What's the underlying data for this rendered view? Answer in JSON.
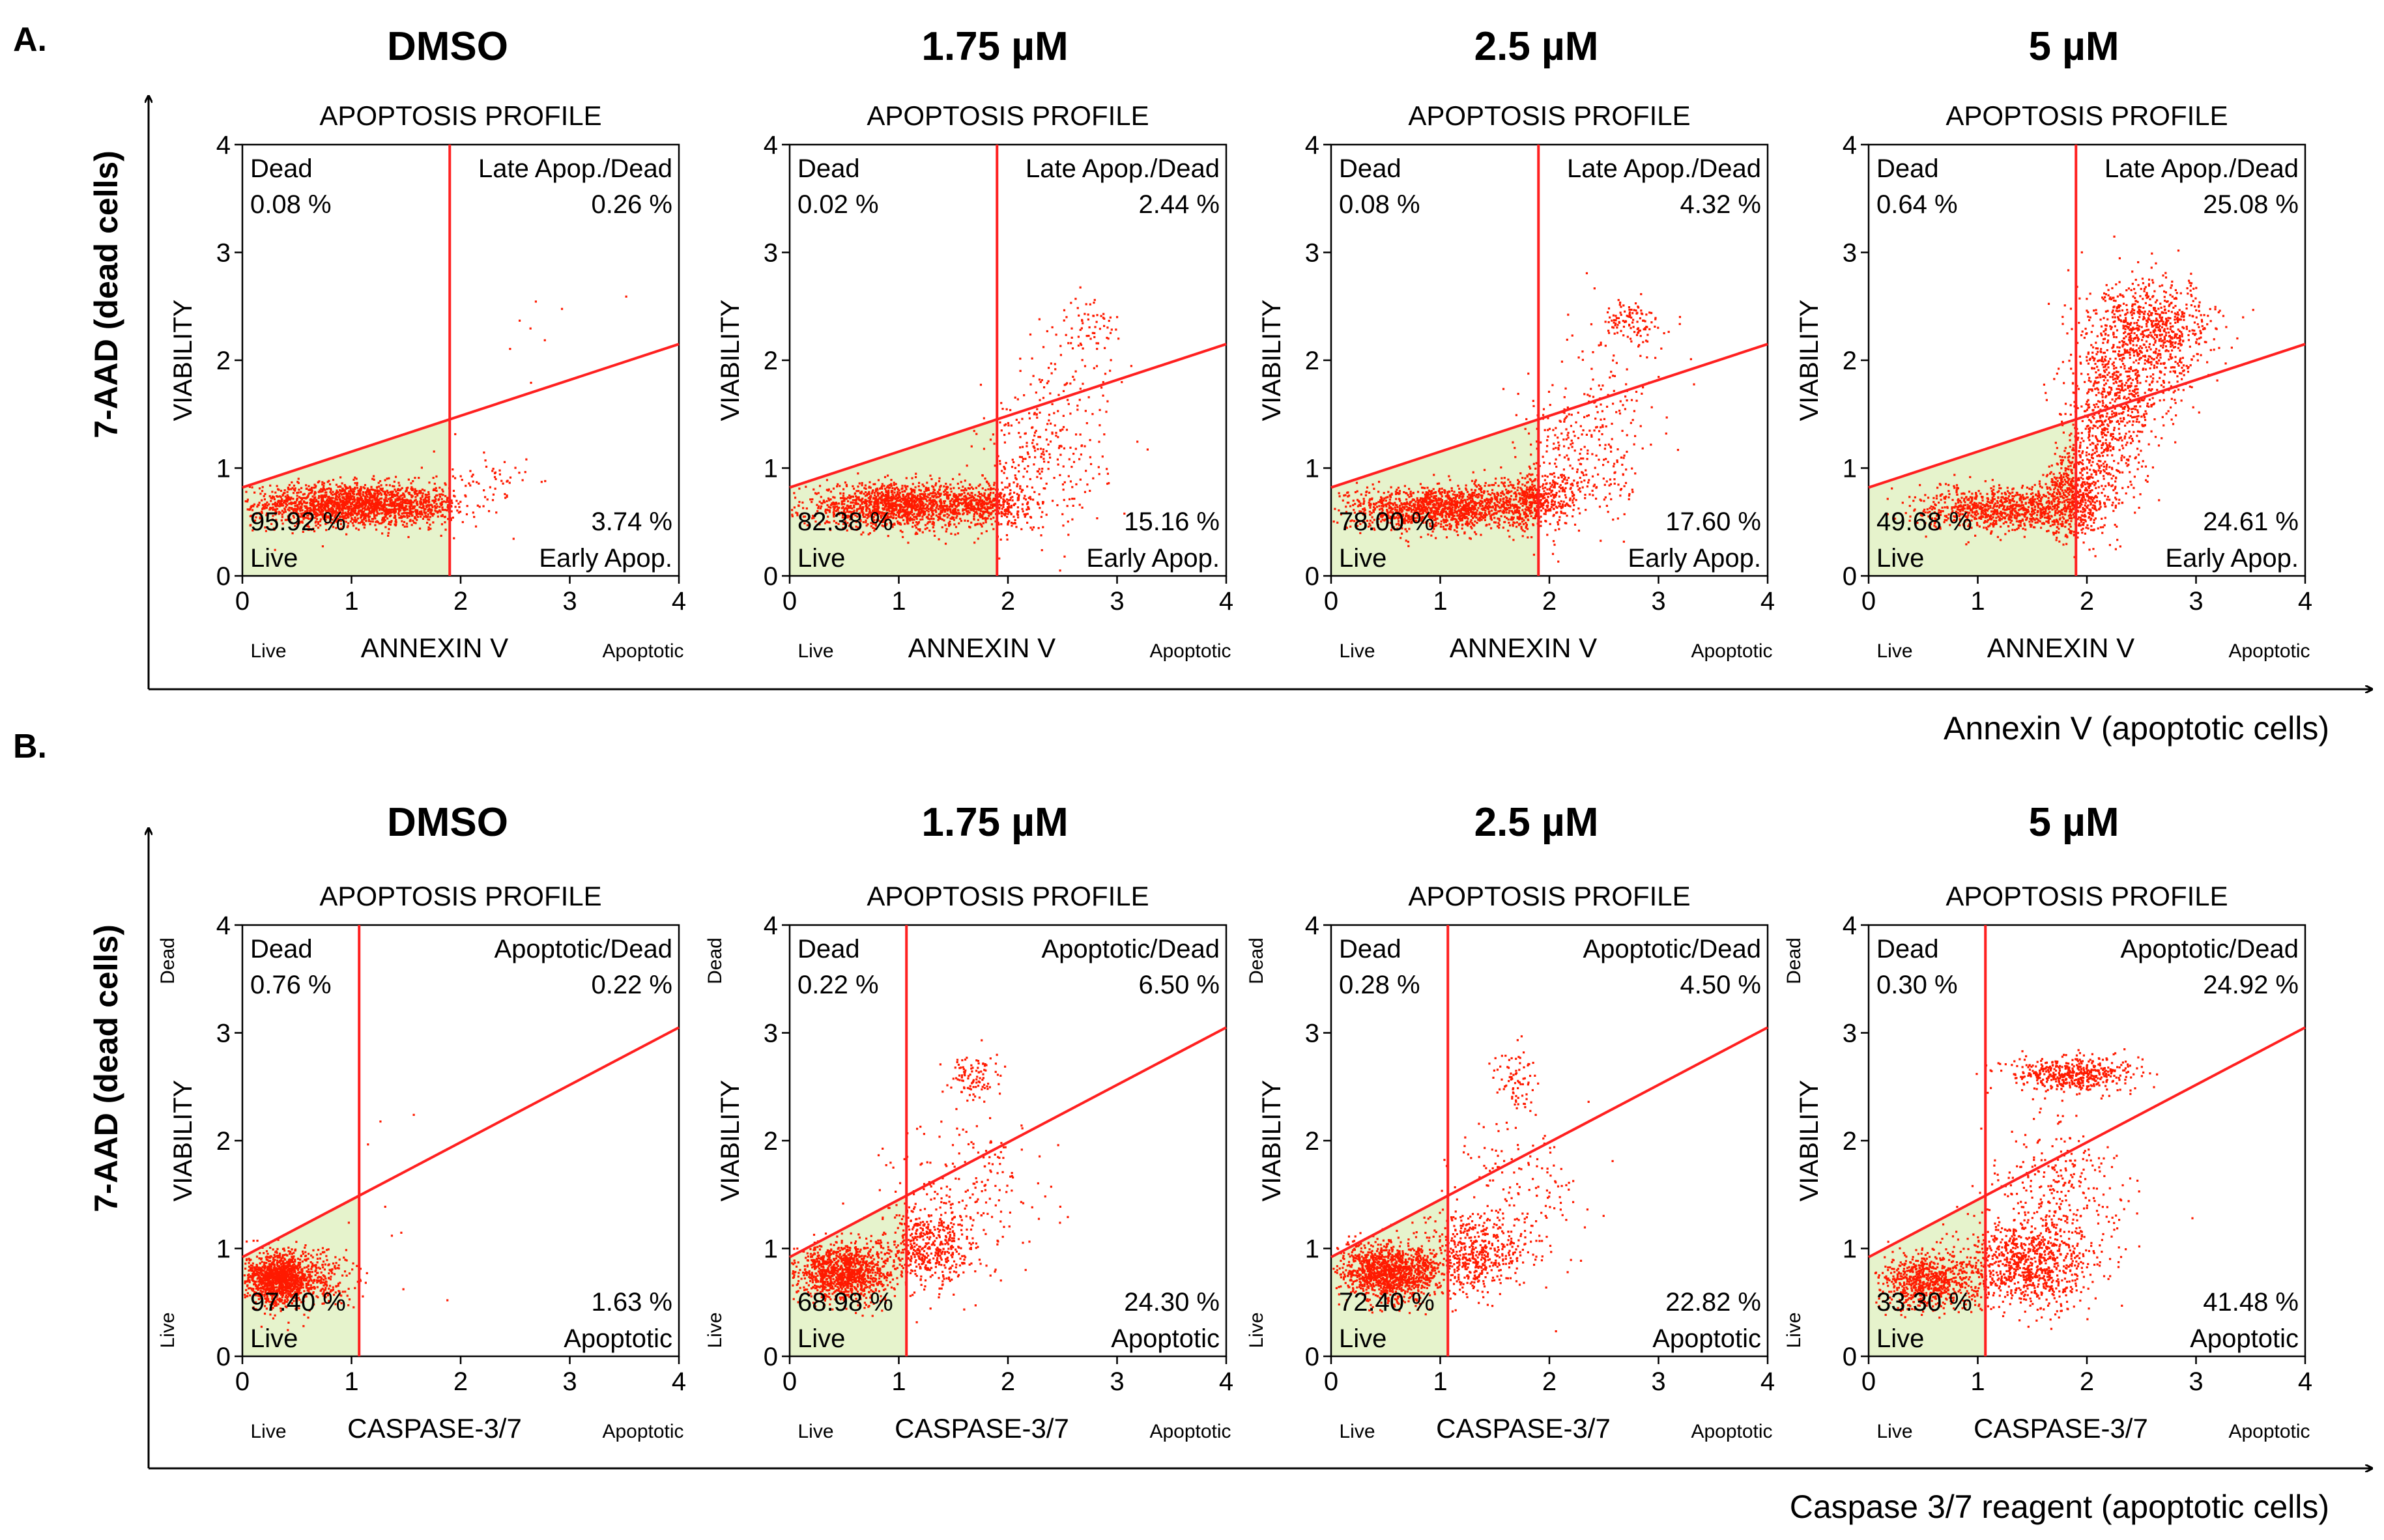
{
  "colors": {
    "background": "#ffffff",
    "axis": "#000000",
    "gate_line": "#ff2020",
    "dot": "#ff1a00",
    "live_region_fill": "#e6f3cc"
  },
  "icons": [
    "arrow-right-icon",
    "arrow-up-icon"
  ],
  "chart_data": [
    {
      "type": "scatter",
      "panel": "A.",
      "outer_ylabel": "7-AAD (dead cells)",
      "outer_xlabel": "Annexin V (apoptotic cells)",
      "x_marker_label": "ANNEXIN V",
      "x_left_label": "Live",
      "x_right_label": "Apoptotic",
      "plots": [
        {
          "condition": "DMSO",
          "title": "APOPTOSIS PROFILE",
          "xlabel": "ANNEXIN V",
          "ylabel": "VIABILITY",
          "xlim": [
            0,
            4
          ],
          "ylim": [
            0,
            4
          ],
          "x_ticks": [
            "0",
            "1",
            "2",
            "3",
            "4"
          ],
          "y_ticks": [
            "0",
            "1",
            "2",
            "3",
            "4"
          ],
          "vertical_gate_x": 1.9,
          "diagonal_gate": {
            "y_at_x0": 0.82,
            "y_at_x4": 2.15
          },
          "quadrants": {
            "dead": {
              "label": "Dead",
              "percent": "0.08 %"
            },
            "late": {
              "label": "Late Apop./Dead",
              "percent": "0.26 %"
            },
            "live": {
              "label": "Live",
              "percent": "95.92 %"
            },
            "early": {
              "label": "Early Apop.",
              "percent": "3.74 %"
            }
          },
          "clusters": [
            {
              "cx": 0.95,
              "cy": 0.66,
              "sx": 0.42,
              "sy": 0.1,
              "n": 1600
            },
            {
              "cx": 1.6,
              "cy": 0.65,
              "sx": 0.18,
              "sy": 0.09,
              "n": 260
            },
            {
              "cx": 2.2,
              "cy": 0.82,
              "sx": 0.22,
              "sy": 0.18,
              "n": 70
            },
            {
              "cx": 2.8,
              "cy": 2.3,
              "sx": 0.25,
              "sy": 0.25,
              "n": 8
            }
          ]
        },
        {
          "condition": "1.75 µM",
          "title": "APOPTOSIS PROFILE",
          "xlabel": "ANNEXIN V",
          "ylabel": "VIABILITY",
          "xlim": [
            0,
            4
          ],
          "ylim": [
            0,
            4
          ],
          "x_ticks": [
            "0",
            "1",
            "2",
            "3",
            "4"
          ],
          "y_ticks": [
            "0",
            "1",
            "2",
            "3",
            "4"
          ],
          "vertical_gate_x": 1.9,
          "diagonal_gate": {
            "y_at_x0": 0.82,
            "y_at_x4": 2.15
          },
          "quadrants": {
            "dead": {
              "label": "Dead",
              "percent": "0.02 %"
            },
            "late": {
              "label": "Late Apop./Dead",
              "percent": "2.44 %"
            },
            "live": {
              "label": "Live",
              "percent": "82.38 %"
            },
            "early": {
              "label": "Early Apop.",
              "percent": "15.16 %"
            }
          },
          "clusters": [
            {
              "cx": 1.0,
              "cy": 0.65,
              "sx": 0.42,
              "sy": 0.1,
              "n": 1400
            },
            {
              "cx": 1.8,
              "cy": 0.66,
              "sx": 0.2,
              "sy": 0.1,
              "n": 380
            },
            {
              "cx": 2.3,
              "cy": 1.05,
              "sx": 0.3,
              "sy": 0.35,
              "n": 280
            },
            {
              "cx": 2.75,
              "cy": 2.35,
              "sx": 0.15,
              "sy": 0.12,
              "n": 60
            },
            {
              "cx": 2.6,
              "cy": 1.8,
              "sx": 0.22,
              "sy": 0.3,
              "n": 50
            }
          ]
        },
        {
          "condition": "2.5 µM",
          "title": "APOPTOSIS PROFILE",
          "xlabel": "ANNEXIN V",
          "ylabel": "VIABILITY",
          "xlim": [
            0,
            4
          ],
          "ylim": [
            0,
            4
          ],
          "x_ticks": [
            "0",
            "1",
            "2",
            "3",
            "4"
          ],
          "y_ticks": [
            "0",
            "1",
            "2",
            "3",
            "4"
          ],
          "vertical_gate_x": 1.9,
          "diagonal_gate": {
            "y_at_x0": 0.82,
            "y_at_x4": 2.15
          },
          "quadrants": {
            "dead": {
              "label": "Dead",
              "percent": "0.08 %"
            },
            "late": {
              "label": "Late Apop./Dead",
              "percent": "4.32 %"
            },
            "live": {
              "label": "Live",
              "percent": "78.00 %"
            },
            "early": {
              "label": "Early Apop.",
              "percent": "17.60 %"
            }
          },
          "clusters": [
            {
              "cx": 1.0,
              "cy": 0.63,
              "sx": 0.42,
              "sy": 0.1,
              "n": 1350
            },
            {
              "cx": 1.85,
              "cy": 0.7,
              "sx": 0.2,
              "sy": 0.12,
              "n": 420
            },
            {
              "cx": 2.3,
              "cy": 1.1,
              "sx": 0.3,
              "sy": 0.35,
              "n": 300
            },
            {
              "cx": 2.75,
              "cy": 2.35,
              "sx": 0.14,
              "sy": 0.1,
              "n": 110
            },
            {
              "cx": 2.6,
              "cy": 1.8,
              "sx": 0.22,
              "sy": 0.3,
              "n": 60
            }
          ]
        },
        {
          "condition": "5 µM",
          "title": "APOPTOSIS PROFILE",
          "xlabel": "ANNEXIN V",
          "ylabel": "VIABILITY",
          "xlim": [
            0,
            4
          ],
          "ylim": [
            0,
            4
          ],
          "x_ticks": [
            "0",
            "1",
            "2",
            "3",
            "4"
          ],
          "y_ticks": [
            "0",
            "1",
            "2",
            "3",
            "4"
          ],
          "vertical_gate_x": 1.9,
          "diagonal_gate": {
            "y_at_x0": 0.82,
            "y_at_x4": 2.15
          },
          "quadrants": {
            "dead": {
              "label": "Dead",
              "percent": "0.64 %"
            },
            "late": {
              "label": "Late Apop./Dead",
              "percent": "25.08 %"
            },
            "live": {
              "label": "Live",
              "percent": "49.68 %"
            },
            "early": {
              "label": "Early Apop.",
              "percent": "24.61 %"
            }
          },
          "clusters": [
            {
              "cx": 1.25,
              "cy": 0.62,
              "sx": 0.38,
              "sy": 0.1,
              "n": 900
            },
            {
              "cx": 1.9,
              "cy": 0.75,
              "sx": 0.15,
              "sy": 0.2,
              "n": 500
            },
            {
              "cx": 2.15,
              "cy": 1.3,
              "sx": 0.2,
              "sy": 0.35,
              "n": 450
            },
            {
              "cx": 2.6,
              "cy": 2.3,
              "sx": 0.3,
              "sy": 0.22,
              "n": 700
            },
            {
              "cx": 2.4,
              "cy": 1.8,
              "sx": 0.25,
              "sy": 0.3,
              "n": 400
            }
          ]
        }
      ]
    },
    {
      "type": "scatter",
      "panel": "B.",
      "outer_ylabel": "7-AAD (dead cells)",
      "outer_xlabel": "Caspase 3/7 reagent (apoptotic cells)",
      "x_marker_label": "CASPASE-3/7",
      "x_left_label": "Live",
      "x_right_label": "Apoptotic",
      "y_top_label": "Dead",
      "y_bottom_label": "Live",
      "plots": [
        {
          "condition": "DMSO",
          "title": "APOPTOSIS PROFILE",
          "xlabel": "CASPASE-3/7",
          "ylabel": "VIABILITY",
          "xlim": [
            0,
            4
          ],
          "ylim": [
            0,
            4
          ],
          "x_ticks": [
            "0",
            "1",
            "2",
            "3",
            "4"
          ],
          "y_ticks": [
            "0",
            "1",
            "2",
            "3",
            "4"
          ],
          "vertical_gate_x": 1.07,
          "diagonal_gate": {
            "y_at_x0": 0.92,
            "y_at_x4": 3.05
          },
          "quadrants": {
            "dead": {
              "label": "Dead",
              "percent": "0.76 %"
            },
            "late": {
              "label": "Apoptotic/Dead",
              "percent": "0.22 %"
            },
            "live": {
              "label": "Live",
              "percent": "97.40 %"
            },
            "early": {
              "label": "Apoptotic",
              "percent": "1.63 %"
            }
          },
          "clusters": [
            {
              "cx": 0.35,
              "cy": 0.72,
              "sx": 0.16,
              "sy": 0.12,
              "n": 1300
            },
            {
              "cx": 0.75,
              "cy": 0.72,
              "sx": 0.15,
              "sy": 0.12,
              "n": 150
            },
            {
              "cx": 1.4,
              "cy": 1.2,
              "sx": 0.4,
              "sy": 0.6,
              "n": 12
            }
          ]
        },
        {
          "condition": "1.75 µM",
          "title": "APOPTOSIS PROFILE",
          "xlabel": "CASPASE-3/7",
          "ylabel": "VIABILITY",
          "xlim": [
            0,
            4
          ],
          "ylim": [
            0,
            4
          ],
          "x_ticks": [
            "0",
            "1",
            "2",
            "3",
            "4"
          ],
          "y_ticks": [
            "0",
            "1",
            "2",
            "3",
            "4"
          ],
          "vertical_gate_x": 1.07,
          "diagonal_gate": {
            "y_at_x0": 0.92,
            "y_at_x4": 3.05
          },
          "quadrants": {
            "dead": {
              "label": "Dead",
              "percent": "0.22 %"
            },
            "late": {
              "label": "Apoptotic/Dead",
              "percent": "6.50 %"
            },
            "live": {
              "label": "Live",
              "percent": "68.98 %"
            },
            "early": {
              "label": "Apoptotic",
              "percent": "24.30 %"
            }
          },
          "clusters": [
            {
              "cx": 0.5,
              "cy": 0.78,
              "sx": 0.22,
              "sy": 0.13,
              "n": 1200
            },
            {
              "cx": 1.25,
              "cy": 1.0,
              "sx": 0.22,
              "sy": 0.2,
              "n": 500
            },
            {
              "cx": 1.7,
              "cy": 1.5,
              "sx": 0.35,
              "sy": 0.35,
              "n": 180
            },
            {
              "cx": 1.7,
              "cy": 2.6,
              "sx": 0.12,
              "sy": 0.12,
              "n": 100
            }
          ]
        },
        {
          "condition": "2.5 µM",
          "title": "APOPTOSIS PROFILE",
          "xlabel": "CASPASE-3/7",
          "ylabel": "VIABILITY",
          "xlim": [
            0,
            4
          ],
          "ylim": [
            0,
            4
          ],
          "x_ticks": [
            "0",
            "1",
            "2",
            "3",
            "4"
          ],
          "y_ticks": [
            "0",
            "1",
            "2",
            "3",
            "4"
          ],
          "vertical_gate_x": 1.07,
          "diagonal_gate": {
            "y_at_x0": 0.92,
            "y_at_x4": 3.05
          },
          "quadrants": {
            "dead": {
              "label": "Dead",
              "percent": "0.28 %"
            },
            "late": {
              "label": "Apoptotic/Dead",
              "percent": "4.50 %"
            },
            "live": {
              "label": "Live",
              "percent": "72.40 %"
            },
            "early": {
              "label": "Apoptotic",
              "percent": "22.82 %"
            }
          },
          "clusters": [
            {
              "cx": 0.55,
              "cy": 0.78,
              "sx": 0.24,
              "sy": 0.13,
              "n": 1250
            },
            {
              "cx": 1.3,
              "cy": 0.95,
              "sx": 0.22,
              "sy": 0.18,
              "n": 480
            },
            {
              "cx": 1.7,
              "cy": 1.5,
              "sx": 0.35,
              "sy": 0.35,
              "n": 160
            },
            {
              "cx": 1.7,
              "cy": 2.55,
              "sx": 0.1,
              "sy": 0.15,
              "n": 80
            }
          ]
        },
        {
          "condition": "5 µM",
          "title": "APOPTOSIS PROFILE",
          "xlabel": "CASPASE-3/7",
          "ylabel": "VIABILITY",
          "xlim": [
            0,
            4
          ],
          "ylim": [
            0,
            4
          ],
          "x_ticks": [
            "0",
            "1",
            "2",
            "3",
            "4"
          ],
          "y_ticks": [
            "0",
            "1",
            "2",
            "3",
            "4"
          ],
          "vertical_gate_x": 1.07,
          "diagonal_gate": {
            "y_at_x0": 0.92,
            "y_at_x4": 3.05
          },
          "quadrants": {
            "dead": {
              "label": "Dead",
              "percent": "0.30 %"
            },
            "late": {
              "label": "Apoptotic/Dead",
              "percent": "24.92 %"
            },
            "live": {
              "label": "Live",
              "percent": "33.30 %"
            },
            "early": {
              "label": "Apoptotic",
              "percent": "41.48 %"
            }
          },
          "clusters": [
            {
              "cx": 0.55,
              "cy": 0.7,
              "sx": 0.22,
              "sy": 0.13,
              "n": 700
            },
            {
              "cx": 1.45,
              "cy": 0.85,
              "sx": 0.3,
              "sy": 0.2,
              "n": 900
            },
            {
              "cx": 1.7,
              "cy": 1.5,
              "sx": 0.3,
              "sy": 0.35,
              "n": 300
            },
            {
              "cx": 1.85,
              "cy": 2.62,
              "sx": 0.28,
              "sy": 0.08,
              "n": 500
            }
          ]
        }
      ]
    }
  ]
}
